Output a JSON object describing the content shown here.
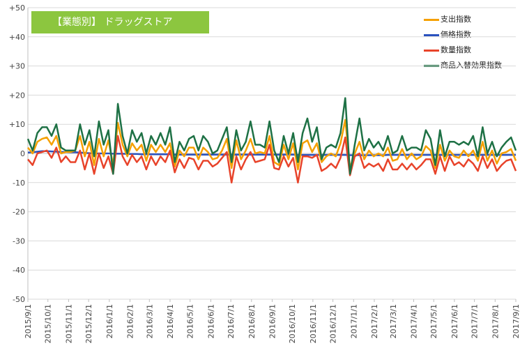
{
  "chart_data": {
    "type": "line",
    "title": "【業態別】 ドラッグストア",
    "xlabel": "",
    "ylabel": "",
    "ylim": [
      -50,
      50
    ],
    "y_ticks": [
      "+50",
      "+40",
      "+30",
      "+20",
      "+10",
      "0",
      "-10",
      "-20",
      "-30",
      "-40",
      "-50"
    ],
    "y_tick_values": [
      50,
      40,
      30,
      20,
      10,
      0,
      -10,
      -20,
      -30,
      -40,
      -50
    ],
    "x_range": [
      "2015/9/1",
      "2017/9/1"
    ],
    "x_tick_labels": [
      "2015/9/1",
      "2015/10/1",
      "2015/11/1",
      "2015/12/1",
      "2016/1/1",
      "2016/2/1",
      "2016/3/1",
      "2016/4/1",
      "2016/5/1",
      "2016/6/1",
      "2016/7/1",
      "2016/8/1",
      "2016/9/1",
      "2016/10/1",
      "2016/11/1",
      "2016/12/1",
      "2017/1/1",
      "2017/2/1",
      "2017/3/1",
      "2017/4/1",
      "2017/5/1",
      "2017/6/1",
      "2017/7/1",
      "2017/8/1",
      "2017/9/1"
    ],
    "grid": true,
    "legend_position": "top-right",
    "sampling": "weekly",
    "series": [
      {
        "name": "支出指数",
        "color": "#f5a000",
        "values": [
          2,
          0,
          4,
          5,
          5.5,
          3,
          6,
          0,
          0.5,
          0.5,
          1,
          6,
          -1,
          4,
          -4,
          5,
          -1,
          4.5,
          -4,
          10.5,
          3,
          -1,
          3.5,
          1,
          3,
          -2.5,
          3,
          0.5,
          3,
          0.5,
          3.5,
          -4.5,
          1,
          -1,
          2,
          2,
          -2,
          2,
          0.5,
          -2,
          -1.5,
          1,
          5,
          -5,
          4.5,
          -2,
          1,
          5,
          0,
          0.5,
          0,
          6,
          -3,
          -4,
          3,
          -2,
          3.5,
          -5.5,
          3.5,
          4.5,
          0.5,
          3.5,
          -3,
          -1,
          0,
          -1,
          3.5,
          11.5,
          -5,
          0,
          4,
          -2,
          1,
          -1,
          0,
          -1,
          2,
          -2.5,
          -2,
          1.5,
          -2,
          0,
          -2,
          -1,
          2.5,
          1,
          -5,
          3,
          -2.5,
          1,
          -1,
          -1.5,
          1,
          -1,
          1,
          -2.5,
          4,
          -2.5,
          1,
          -3.5,
          0,
          0.5,
          1.5,
          -2.5
        ]
      },
      {
        "name": "価格指数",
        "color": "#2a52be",
        "values": [
          0.3,
          0.4,
          0.6,
          0.8,
          0.8,
          0.7,
          0.6,
          0.5,
          0.5,
          0.4,
          0.4,
          0.3,
          0.2,
          0.1,
          0,
          0,
          0,
          0,
          -0.1,
          -0.1,
          -0.1,
          -0.2,
          -0.2,
          -0.2,
          -0.3,
          -0.3,
          -0.3,
          -0.3,
          -0.3,
          -0.3,
          -0.3,
          -0.4,
          -0.4,
          -0.4,
          -0.4,
          -0.4,
          -0.4,
          -0.4,
          -0.4,
          -0.4,
          -0.4,
          -0.4,
          -0.4,
          -0.4,
          -0.4,
          -0.4,
          -0.4,
          -0.4,
          -0.4,
          -0.4,
          -0.4,
          -0.4,
          -0.4,
          -0.4,
          -0.4,
          -0.4,
          -0.4,
          -0.5,
          -0.5,
          -0.5,
          -0.5,
          -0.5,
          -0.5,
          -0.5,
          -0.5,
          -0.5,
          -0.5,
          -0.5,
          -0.6,
          -0.6,
          -0.6,
          -0.6,
          -0.6,
          -0.6,
          -0.6,
          -0.6,
          -0.5,
          -0.5,
          -0.5,
          -0.5,
          -0.5,
          -0.5,
          -0.5,
          -0.5,
          -0.5,
          -0.5,
          -0.5,
          -0.5,
          -0.5,
          -0.5,
          -0.5,
          -0.5,
          -0.5,
          -0.5,
          -0.5,
          -0.5,
          -0.5,
          -0.5,
          -0.5,
          -0.5,
          -0.5,
          -0.5,
          -0.5,
          -0.5
        ]
      },
      {
        "name": "数量指数",
        "color": "#e8432a",
        "values": [
          -2,
          -4,
          0,
          0.5,
          1,
          -1.5,
          2,
          -3,
          -1,
          -3,
          -3,
          1,
          -5.5,
          0,
          -7,
          0,
          -5,
          -1,
          -7,
          6,
          -1,
          -4,
          -0.5,
          -3,
          -1,
          -5.5,
          -1,
          -4,
          -1,
          -3,
          1,
          -6.5,
          -2,
          -5,
          -1.5,
          -2,
          -5.5,
          -2.5,
          -2.5,
          -4.5,
          -3.5,
          -1.5,
          0.5,
          -10,
          -1,
          -5.5,
          -2,
          0.5,
          -3,
          -2.5,
          -2,
          3,
          -5,
          -5.5,
          -1,
          -4.5,
          -1.5,
          -10,
          -1,
          -1,
          -1.5,
          -0.5,
          -6,
          -5,
          -3.5,
          -5,
          -1.5,
          5.5,
          -7.5,
          -1,
          0,
          -5,
          -3.5,
          -4.5,
          -3.5,
          -6,
          -2,
          -5.5,
          -5.5,
          -3.5,
          -5.5,
          -3.5,
          -5.5,
          -4,
          -2,
          -2,
          -7,
          -1,
          -6,
          -1,
          -4,
          -3,
          -4.5,
          -2,
          -3.5,
          -6,
          -1,
          -5,
          -2,
          -6,
          -4,
          -2.5,
          -2,
          -6
        ]
      },
      {
        "name": "商品入替効果指数",
        "color": "#1e7145",
        "values": [
          5,
          1,
          7,
          9,
          9,
          6,
          10,
          2,
          1,
          1,
          1,
          10,
          3,
          8,
          -1,
          11,
          3,
          8,
          -7,
          17,
          6,
          0,
          8,
          4,
          7,
          0,
          6,
          3,
          7,
          3,
          9,
          -3,
          4,
          1,
          5,
          6,
          1,
          6,
          4,
          0,
          1,
          5,
          9,
          -3,
          8,
          1,
          4,
          11,
          3,
          3,
          2,
          11,
          1,
          -3,
          6,
          0,
          7,
          -3,
          7,
          12,
          4,
          9,
          -2,
          2,
          3,
          2,
          7,
          19,
          -7,
          3,
          12,
          1,
          5,
          2,
          4,
          1,
          6,
          0,
          1,
          6,
          1,
          2,
          2,
          1,
          8,
          5,
          -4,
          8,
          -1,
          4,
          4,
          3,
          4,
          3,
          6,
          -1,
          9,
          0,
          4,
          -1,
          2,
          4,
          5.5,
          1
        ]
      }
    ]
  }
}
